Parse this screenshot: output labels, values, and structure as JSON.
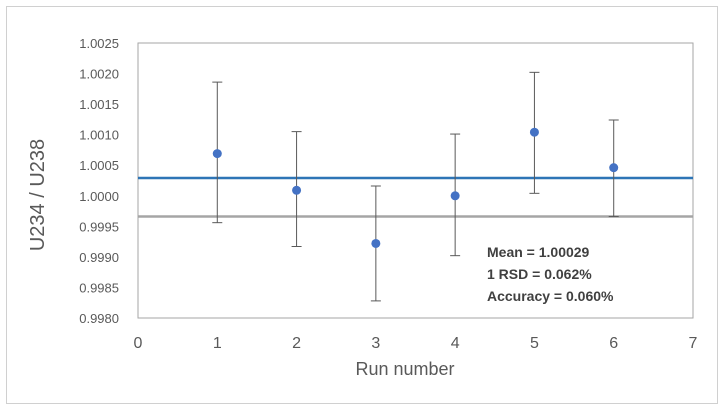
{
  "chart_data": {
    "type": "scatter",
    "title": "",
    "xlabel": "Run number",
    "ylabel": "U234 / U238",
    "xlim": [
      0,
      7
    ],
    "ylim": [
      0.998,
      1.0025
    ],
    "x_ticks": [
      "0",
      "1",
      "2",
      "3",
      "4",
      "5",
      "6",
      "7"
    ],
    "y_ticks": [
      "1.0025",
      "1.0020",
      "1.0015",
      "1.0010",
      "1.0005",
      "1.0000",
      "0.9995",
      "0.9990",
      "0.9985",
      "0.9980"
    ],
    "grid": false,
    "series": [
      {
        "type": "scatter",
        "x": [
          1,
          2,
          3,
          4,
          5,
          6
        ],
        "y": [
          1.00069,
          1.00009,
          0.99922,
          1.0,
          1.00104,
          1.00046
        ],
        "error_low": [
          0.99956,
          0.99917,
          0.99828,
          0.99902,
          1.00004,
          0.99966
        ],
        "error_high": [
          1.00186,
          1.00105,
          1.00016,
          1.00101,
          1.00202,
          1.00124
        ]
      }
    ],
    "reference_lines": [
      {
        "y": 1.00029,
        "color": "#2E75B6"
      },
      {
        "y": 0.99966,
        "color": "#A5A5A5"
      }
    ],
    "annotations": [
      "Mean = 1.00029",
      "1 RSD = 0.062%",
      "Accuracy = 0.060%"
    ]
  },
  "colors": {
    "marker": "#4472C4",
    "error_bar": "#595959",
    "frame": "#a6a6a6"
  }
}
